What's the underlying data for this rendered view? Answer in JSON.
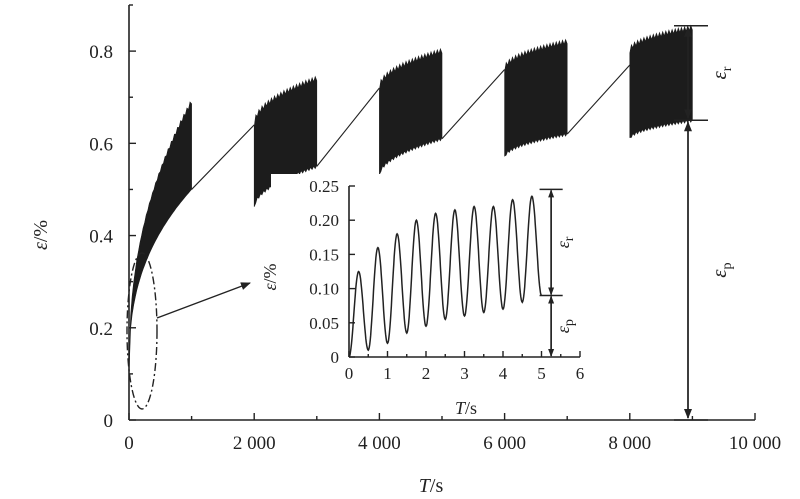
{
  "chart_data": [
    {
      "type": "line",
      "title": "",
      "xlabel_italic": "T",
      "xlabel_unit": "/s",
      "ylabel_italic": "ε",
      "ylabel_unit": "/%",
      "xlim": [
        0,
        10000
      ],
      "ylim": [
        0,
        0.9
      ],
      "x_ticks": [
        0,
        2000,
        4000,
        6000,
        8000,
        10000
      ],
      "x_tick_labels": [
        "0",
        "2 000",
        "4 000",
        "6 000",
        "8 000",
        "10 000"
      ],
      "y_ticks": [
        0,
        0.2,
        0.4,
        0.6,
        0.8
      ],
      "y_tick_labels": [
        "0",
        "0.2",
        "0.4",
        "0.6",
        "0.8"
      ],
      "grid": false,
      "series": [
        {
          "loading_blocks": [
            {
              "t_start": 0,
              "t_end": 1000,
              "lower_start": 0.1,
              "lower_end": 0.5,
              "upper_start": 0.1,
              "upper_end": 0.69
            },
            {
              "t_start": 2000,
              "t_end": 3000,
              "lower_start": 0.46,
              "lower_end": 0.55,
              "upper_start": 0.64,
              "upper_end": 0.74
            },
            {
              "t_start": 4000,
              "t_end": 5000,
              "lower_start": 0.53,
              "lower_end": 0.61,
              "upper_start": 0.72,
              "upper_end": 0.8
            },
            {
              "t_start": 6000,
              "t_end": 7000,
              "lower_start": 0.57,
              "lower_end": 0.62,
              "upper_start": 0.76,
              "upper_end": 0.82
            },
            {
              "t_start": 8000,
              "t_end": 9000,
              "lower_start": 0.61,
              "lower_end": 0.65,
              "upper_start": 0.8,
              "upper_end": 0.85
            }
          ],
          "rest_lines": [
            {
              "x": [
                1000,
                2000
              ],
              "y": [
                0.5,
                0.64
              ]
            },
            {
              "x": [
                3000,
                4000
              ],
              "y": [
                0.55,
                0.72
              ]
            },
            {
              "x": [
                5000,
                6000
              ],
              "y": [
                0.61,
                0.76
              ]
            },
            {
              "x": [
                7000,
                8000
              ],
              "y": [
                0.62,
                0.77
              ]
            }
          ]
        }
      ],
      "annotations": {
        "epsilon_r_main": {
          "symbol": "ε",
          "subscript": "r",
          "from_y": 0.65,
          "to_y": 0.855
        },
        "epsilon_p_main": {
          "symbol": "ε",
          "subscript": "p",
          "from_y": 0.0,
          "to_y": 0.65
        }
      }
    },
    {
      "type": "line",
      "title": "",
      "xlabel_italic": "T",
      "xlabel_unit": "/s",
      "ylabel_italic": "ε",
      "ylabel_unit": "/%",
      "xlim": [
        0,
        6
      ],
      "ylim": [
        0,
        0.25
      ],
      "x_ticks": [
        0,
        1,
        2,
        3,
        4,
        5,
        6
      ],
      "x_tick_labels": [
        "0",
        "1",
        "2",
        "3",
        "4",
        "5",
        "6"
      ],
      "y_ticks": [
        0,
        0.05,
        0.1,
        0.15,
        0.2,
        0.25
      ],
      "y_tick_labels": [
        "0",
        "0.05",
        "0.10",
        "0.15",
        "0.20",
        "0.25"
      ],
      "grid": false,
      "series": [
        {
          "period": 0.5,
          "peaks": [
            0.125,
            0.16,
            0.18,
            0.2,
            0.21,
            0.215,
            0.22,
            0.22,
            0.23,
            0.235
          ],
          "troughs": [
            0.01,
            0.02,
            0.035,
            0.045,
            0.055,
            0.06,
            0.065,
            0.07,
            0.08,
            0.09
          ]
        }
      ],
      "annotations": {
        "epsilon_r_inset": {
          "symbol": "ε",
          "subscript": "r",
          "from_y": 0.09,
          "to_y": 0.245
        },
        "epsilon_p_inset": {
          "symbol": "ε",
          "subscript": "p",
          "from_y": 0.0,
          "to_y": 0.09
        }
      }
    }
  ]
}
